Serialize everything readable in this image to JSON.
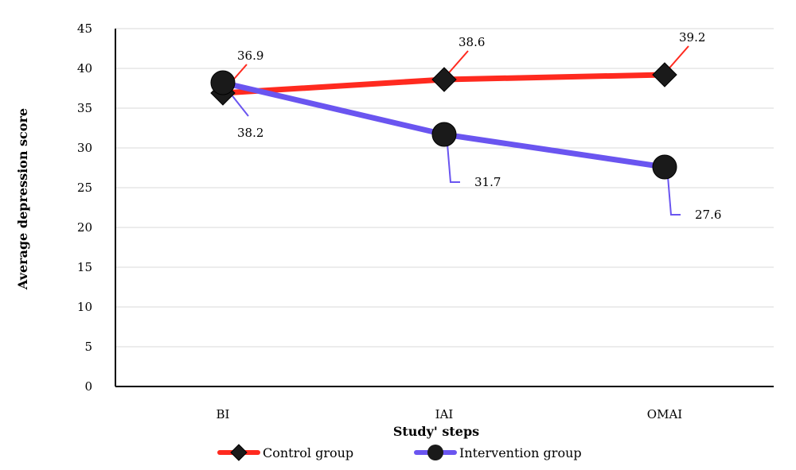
{
  "chart_data": {
    "type": "line",
    "title": "",
    "xlabel": "Study' steps",
    "ylabel": "Average depression score",
    "categories": [
      "BI",
      "IAI",
      "OMAI"
    ],
    "ylim": [
      0,
      45
    ],
    "yticks": [
      0,
      5,
      10,
      15,
      20,
      25,
      30,
      35,
      40,
      45
    ],
    "grid": true,
    "legend_position": "bottom",
    "series": [
      {
        "name": "Control group",
        "values": [
          36.9,
          38.6,
          39.2
        ],
        "labels": [
          "36.9",
          "38.6",
          "39.2"
        ],
        "color": "#ff2a1f",
        "marker": "diamond"
      },
      {
        "name": "Intervention group",
        "values": [
          38.2,
          31.7,
          27.6
        ],
        "labels": [
          "38.2",
          "31.7",
          "27.6"
        ],
        "color": "#6a55f0",
        "marker": "circle"
      }
    ]
  }
}
